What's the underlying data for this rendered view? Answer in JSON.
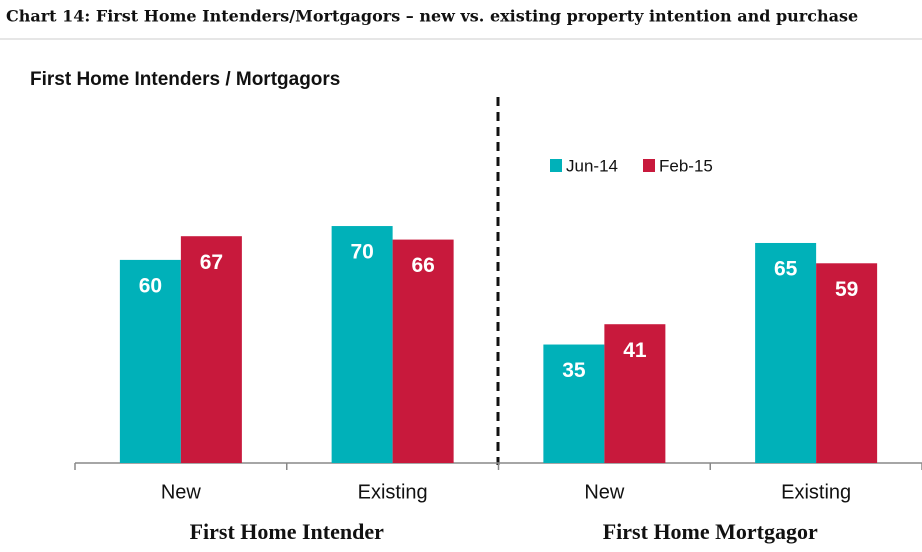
{
  "chart_data": {
    "type": "bar",
    "title": "Chart 14: First Home Intenders/Mortgagors – new vs. existing property intention and purchase",
    "subtitle": "First Home Intenders / Mortgagors",
    "categories": [
      "New",
      "Existing",
      "New",
      "Existing"
    ],
    "groups": [
      "First Home Intender",
      "First Home Mortgagor"
    ],
    "series": [
      {
        "name": "Jun-14",
        "color": "#00b1b9",
        "values": [
          60,
          70,
          35,
          65
        ]
      },
      {
        "name": "Feb-15",
        "color": "#c8193c",
        "values": [
          67,
          66,
          41,
          59
        ]
      }
    ]
  }
}
